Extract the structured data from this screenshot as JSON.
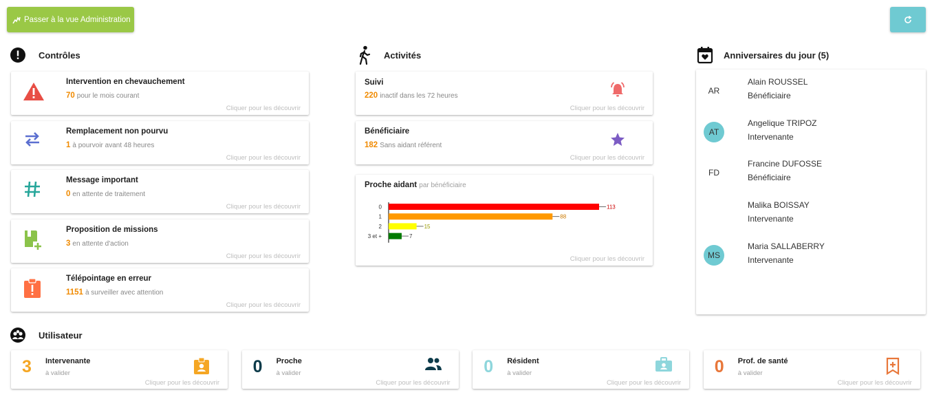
{
  "header": {
    "admin_button_label": "Passer à la vue Administration",
    "colors": {
      "admin": "#9ac846",
      "refresh": "#6fcad2"
    }
  },
  "controles": {
    "title": "Contrôles",
    "cta": "Cliquer pour les découvrir",
    "items": [
      {
        "title": "Intervention en chevauchement",
        "value": "70",
        "desc": "pour le mois courant",
        "icon": "warning-icon"
      },
      {
        "title": "Remplacement non pourvu",
        "value": "1",
        "desc": "à pourvoir avant 48 heures",
        "icon": "swap-arrows-icon"
      },
      {
        "title": "Message important",
        "value": "0",
        "desc": "en attente de traitement",
        "icon": "hash-icon"
      },
      {
        "title": "Proposition de missions",
        "value": "3",
        "desc": "en attente d'action",
        "icon": "book-plus-icon"
      },
      {
        "title": "Télépointage en erreur",
        "value": "1151",
        "desc": "à surveiller avec attention",
        "icon": "clipboard-alert-icon"
      }
    ]
  },
  "activites": {
    "title": "Activités",
    "cta": "Cliquer pour les découvrir",
    "items": [
      {
        "title": "Suivi",
        "value": "220",
        "desc": "inactif dans les 72 heures",
        "icon": "bell-ring-icon"
      },
      {
        "title": "Bénéficiaire",
        "value": "182",
        "desc": "Sans aidant référent",
        "icon": "star-icon"
      }
    ],
    "chart_card": {
      "title": "Proche aidant",
      "subtitle": "par bénéficiaire"
    }
  },
  "chart_data": {
    "type": "bar",
    "orientation": "horizontal",
    "title": "Proche aidant",
    "subtitle": "par bénéficiaire",
    "categories": [
      "0",
      "1",
      "2",
      "3 et +"
    ],
    "values": [
      113,
      88,
      15,
      7
    ],
    "colors": [
      "#ff0000",
      "#ff9900",
      "#ffff00",
      "#007a00"
    ],
    "label_colors": [
      "#cc0000",
      "#cc7a00",
      "#999900",
      "#333333"
    ],
    "xlim": [
      0,
      113
    ],
    "grid": false
  },
  "anniversaires": {
    "title": "Anniversaires du jour (5)",
    "people": [
      {
        "initials": "AR",
        "name": "Alain ROUSSEL",
        "role": "Bénéficiaire",
        "avatar": false
      },
      {
        "initials": "AT",
        "name": "Angelique TRIPOZ",
        "role": "Intervenante",
        "avatar": true
      },
      {
        "initials": "FD",
        "name": "Francine DUFOSSE",
        "role": "Bénéficiaire",
        "avatar": false
      },
      {
        "initials": "",
        "name": "Malika BOISSAY",
        "role": "Intervenante",
        "avatar": false
      },
      {
        "initials": "MS",
        "name": "Maria SALLABERRY",
        "role": "Intervenante",
        "avatar": true
      }
    ]
  },
  "utilisateur": {
    "title": "Utilisateur",
    "cta": "Cliquer pour les découvrir",
    "items": [
      {
        "value": "3",
        "title": "Intervenante",
        "sub": "à valider",
        "color": "#f5a623",
        "icon": "badge-account-icon"
      },
      {
        "value": "0",
        "title": "Proche",
        "sub": "à valider",
        "color": "#0d3b4a",
        "icon": "account-group-icon"
      },
      {
        "value": "0",
        "title": "Résident",
        "sub": "à valider",
        "color": "#8ed6dc",
        "icon": "medical-bag-icon"
      },
      {
        "value": "0",
        "title": "Prof. de santé",
        "sub": "à valider",
        "color": "#e8773a",
        "icon": "bookmark-plus-icon"
      }
    ]
  }
}
